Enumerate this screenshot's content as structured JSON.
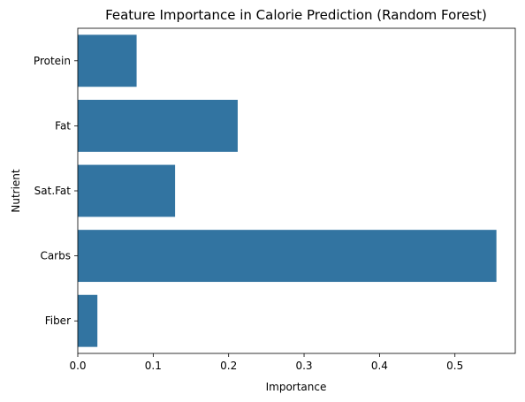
{
  "chart_data": {
    "type": "bar",
    "orientation": "horizontal",
    "title": "Feature Importance in Calorie Prediction (Random Forest)",
    "xlabel": "Importance",
    "ylabel": "Nutrient",
    "categories": [
      "Protein",
      "Fat",
      "Sat.Fat",
      "Carbs",
      "Fiber"
    ],
    "values": [
      0.078,
      0.212,
      0.129,
      0.555,
      0.026
    ],
    "xlim": [
      0,
      0.58
    ],
    "xticks": [
      0,
      0.1,
      0.2,
      0.3,
      0.4,
      0.5
    ],
    "xtick_labels": [
      "0.0",
      "0.1",
      "0.2",
      "0.3",
      "0.4",
      "0.5"
    ],
    "grid": false,
    "bar_color": "#3274a1"
  }
}
